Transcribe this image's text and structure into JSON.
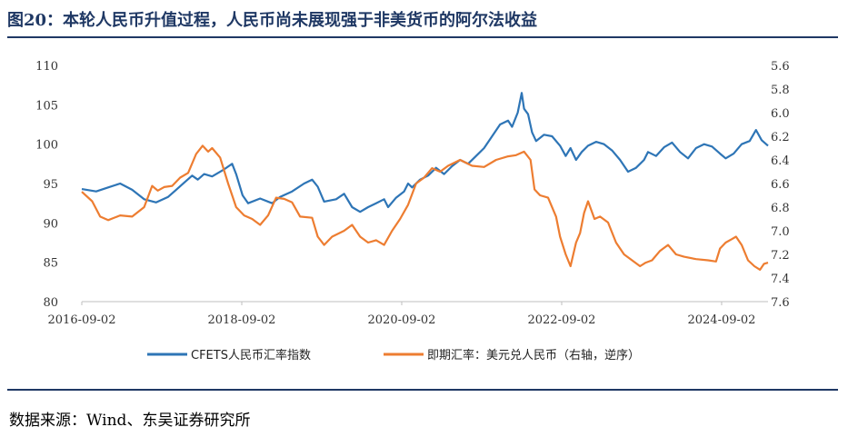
{
  "title": "图20：本轮人民币升值过程，人民币尚未展现强于非美货币的阿尔法收益",
  "source": "数据来源：Wind、东吴证券研究所",
  "colors": {
    "series1": "#2e75b6",
    "series2": "#ed7d31",
    "title": "#1f3864"
  },
  "chart_data": {
    "type": "line",
    "x_tick_labels": [
      "2016-09-02",
      "2018-09-02",
      "2020-09-02",
      "2022-09-02",
      "2024-09-02"
    ],
    "x_tick_years": [
      2016.67,
      2018.67,
      2020.67,
      2022.67,
      2024.67
    ],
    "xlim": [
      2016.67,
      2025.25
    ],
    "y_left": {
      "ylim": [
        80,
        110
      ],
      "ticks": [
        80,
        85,
        90,
        95,
        100,
        105,
        110
      ],
      "tick_labels": [
        "80",
        "85",
        "90",
        "95",
        "100",
        "105",
        "110"
      ]
    },
    "y_right": {
      "ylim": [
        5.6,
        7.6
      ],
      "inverted": true,
      "ticks": [
        5.6,
        5.8,
        6.0,
        6.2,
        6.4,
        6.6,
        6.8,
        7.0,
        7.2,
        7.4,
        7.6
      ],
      "tick_labels": [
        "5.6",
        "5.8",
        "6.0",
        "6.2",
        "6.4",
        "6.6",
        "6.8",
        "7.0",
        "7.2",
        "7.4",
        "7.6"
      ]
    },
    "series": [
      {
        "name": "CFETS人民币汇率指数",
        "axis": "left",
        "points": [
          [
            2016.67,
            94.3
          ],
          [
            2016.85,
            94.0
          ],
          [
            2017.0,
            94.5
          ],
          [
            2017.15,
            95.0
          ],
          [
            2017.3,
            94.2
          ],
          [
            2017.45,
            93.0
          ],
          [
            2017.6,
            92.6
          ],
          [
            2017.75,
            93.3
          ],
          [
            2017.85,
            94.2
          ],
          [
            2017.95,
            95.1
          ],
          [
            2018.05,
            96.0
          ],
          [
            2018.12,
            95.5
          ],
          [
            2018.2,
            96.2
          ],
          [
            2018.3,
            95.9
          ],
          [
            2018.45,
            96.8
          ],
          [
            2018.55,
            97.5
          ],
          [
            2018.6,
            96.2
          ],
          [
            2018.68,
            93.5
          ],
          [
            2018.75,
            92.5
          ],
          [
            2018.9,
            93.1
          ],
          [
            2019.05,
            92.5
          ],
          [
            2019.15,
            93.3
          ],
          [
            2019.3,
            94.0
          ],
          [
            2019.45,
            95.0
          ],
          [
            2019.55,
            95.5
          ],
          [
            2019.62,
            94.6
          ],
          [
            2019.7,
            92.7
          ],
          [
            2019.85,
            93.0
          ],
          [
            2019.95,
            93.7
          ],
          [
            2020.05,
            92.0
          ],
          [
            2020.15,
            91.4
          ],
          [
            2020.25,
            92.0
          ],
          [
            2020.35,
            92.5
          ],
          [
            2020.45,
            93.0
          ],
          [
            2020.5,
            92.0
          ],
          [
            2020.6,
            93.2
          ],
          [
            2020.7,
            94.0
          ],
          [
            2020.75,
            95.0
          ],
          [
            2020.8,
            94.5
          ],
          [
            2020.9,
            95.5
          ],
          [
            2021.0,
            96.0
          ],
          [
            2021.1,
            97.0
          ],
          [
            2021.2,
            96.2
          ],
          [
            2021.3,
            97.2
          ],
          [
            2021.4,
            98.0
          ],
          [
            2021.5,
            97.5
          ],
          [
            2021.6,
            98.5
          ],
          [
            2021.7,
            99.5
          ],
          [
            2021.8,
            101.0
          ],
          [
            2021.9,
            102.5
          ],
          [
            2022.0,
            103.0
          ],
          [
            2022.05,
            102.2
          ],
          [
            2022.12,
            104.0
          ],
          [
            2022.17,
            106.5
          ],
          [
            2022.2,
            104.5
          ],
          [
            2022.25,
            103.8
          ],
          [
            2022.3,
            101.5
          ],
          [
            2022.35,
            100.4
          ],
          [
            2022.45,
            101.2
          ],
          [
            2022.55,
            101.0
          ],
          [
            2022.65,
            99.8
          ],
          [
            2022.72,
            98.5
          ],
          [
            2022.78,
            99.5
          ],
          [
            2022.85,
            98.0
          ],
          [
            2022.92,
            99.0
          ],
          [
            2023.0,
            99.8
          ],
          [
            2023.1,
            100.3
          ],
          [
            2023.2,
            100.0
          ],
          [
            2023.3,
            99.2
          ],
          [
            2023.4,
            98.0
          ],
          [
            2023.5,
            96.5
          ],
          [
            2023.6,
            97.0
          ],
          [
            2023.7,
            98.0
          ],
          [
            2023.75,
            99.0
          ],
          [
            2023.85,
            98.5
          ],
          [
            2023.95,
            99.6
          ],
          [
            2024.05,
            100.2
          ],
          [
            2024.15,
            99.0
          ],
          [
            2024.25,
            98.2
          ],
          [
            2024.35,
            99.5
          ],
          [
            2024.45,
            100.0
          ],
          [
            2024.55,
            99.7
          ],
          [
            2024.65,
            98.8
          ],
          [
            2024.72,
            98.2
          ],
          [
            2024.82,
            98.8
          ],
          [
            2024.92,
            100.0
          ],
          [
            2025.02,
            100.4
          ],
          [
            2025.1,
            101.8
          ],
          [
            2025.17,
            100.5
          ],
          [
            2025.25,
            99.8
          ]
        ]
      },
      {
        "name": "即期汇率：美元兑人民币（右轴，逆序）",
        "axis": "right",
        "points": [
          [
            2016.67,
            6.67
          ],
          [
            2016.8,
            6.75
          ],
          [
            2016.9,
            6.88
          ],
          [
            2017.0,
            6.91
          ],
          [
            2017.15,
            6.87
          ],
          [
            2017.3,
            6.88
          ],
          [
            2017.45,
            6.8
          ],
          [
            2017.55,
            6.62
          ],
          [
            2017.62,
            6.66
          ],
          [
            2017.7,
            6.63
          ],
          [
            2017.8,
            6.62
          ],
          [
            2017.9,
            6.55
          ],
          [
            2018.0,
            6.51
          ],
          [
            2018.1,
            6.35
          ],
          [
            2018.18,
            6.28
          ],
          [
            2018.25,
            6.33
          ],
          [
            2018.3,
            6.3
          ],
          [
            2018.4,
            6.38
          ],
          [
            2018.5,
            6.6
          ],
          [
            2018.6,
            6.8
          ],
          [
            2018.7,
            6.87
          ],
          [
            2018.8,
            6.9
          ],
          [
            2018.9,
            6.95
          ],
          [
            2019.0,
            6.87
          ],
          [
            2019.1,
            6.72
          ],
          [
            2019.2,
            6.73
          ],
          [
            2019.3,
            6.76
          ],
          [
            2019.4,
            6.88
          ],
          [
            2019.55,
            6.89
          ],
          [
            2019.62,
            7.05
          ],
          [
            2019.7,
            7.12
          ],
          [
            2019.8,
            7.05
          ],
          [
            2019.95,
            7.0
          ],
          [
            2020.05,
            6.95
          ],
          [
            2020.15,
            7.05
          ],
          [
            2020.25,
            7.1
          ],
          [
            2020.35,
            7.08
          ],
          [
            2020.45,
            7.12
          ],
          [
            2020.55,
            7.0
          ],
          [
            2020.65,
            6.9
          ],
          [
            2020.75,
            6.78
          ],
          [
            2020.85,
            6.6
          ],
          [
            2020.95,
            6.55
          ],
          [
            2021.05,
            6.47
          ],
          [
            2021.15,
            6.5
          ],
          [
            2021.25,
            6.45
          ],
          [
            2021.4,
            6.4
          ],
          [
            2021.55,
            6.45
          ],
          [
            2021.7,
            6.46
          ],
          [
            2021.85,
            6.4
          ],
          [
            2022.0,
            6.37
          ],
          [
            2022.1,
            6.36
          ],
          [
            2022.2,
            6.33
          ],
          [
            2022.28,
            6.4
          ],
          [
            2022.33,
            6.65
          ],
          [
            2022.4,
            6.7
          ],
          [
            2022.5,
            6.72
          ],
          [
            2022.6,
            6.88
          ],
          [
            2022.65,
            7.05
          ],
          [
            2022.72,
            7.2
          ],
          [
            2022.78,
            7.3
          ],
          [
            2022.85,
            7.1
          ],
          [
            2022.9,
            7.02
          ],
          [
            2022.95,
            6.85
          ],
          [
            2023.0,
            6.75
          ],
          [
            2023.08,
            6.9
          ],
          [
            2023.15,
            6.88
          ],
          [
            2023.25,
            6.93
          ],
          [
            2023.35,
            7.1
          ],
          [
            2023.45,
            7.2
          ],
          [
            2023.55,
            7.25
          ],
          [
            2023.65,
            7.3
          ],
          [
            2023.72,
            7.27
          ],
          [
            2023.8,
            7.25
          ],
          [
            2023.9,
            7.17
          ],
          [
            2024.0,
            7.12
          ],
          [
            2024.1,
            7.2
          ],
          [
            2024.2,
            7.22
          ],
          [
            2024.35,
            7.24
          ],
          [
            2024.5,
            7.25
          ],
          [
            2024.6,
            7.26
          ],
          [
            2024.65,
            7.15
          ],
          [
            2024.72,
            7.1
          ],
          [
            2024.8,
            7.07
          ],
          [
            2024.85,
            7.05
          ],
          [
            2024.92,
            7.12
          ],
          [
            2025.0,
            7.25
          ],
          [
            2025.08,
            7.3
          ],
          [
            2025.15,
            7.33
          ],
          [
            2025.2,
            7.28
          ],
          [
            2025.25,
            7.27
          ]
        ]
      }
    ]
  }
}
